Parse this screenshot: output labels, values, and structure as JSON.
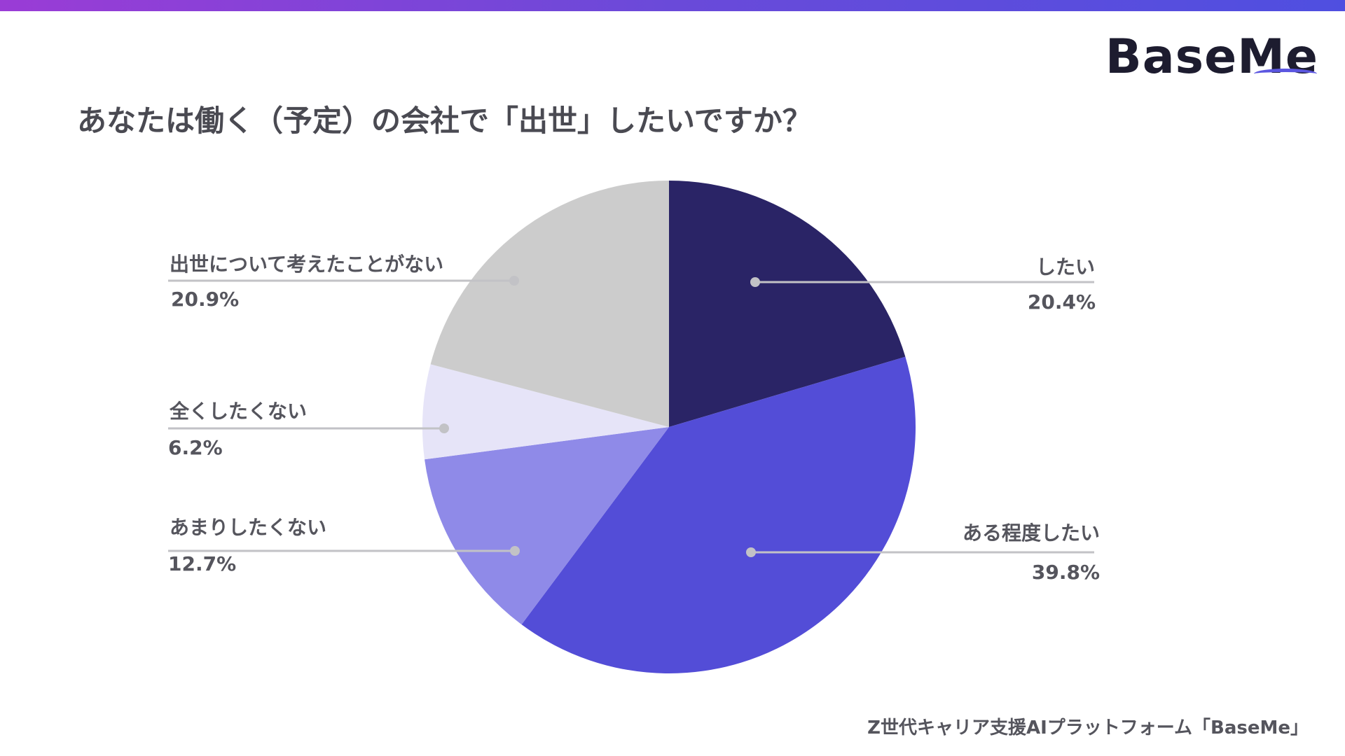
{
  "brand": {
    "logo_text": "BaseMe",
    "accent_color": "#5b56e0"
  },
  "title": "あなたは働く（予定）の会社で「出世」したいですか？",
  "footer": "Z世代キャリア支援AIプラットフォーム「BaseMe」",
  "chart_data": {
    "type": "pie",
    "start_angle_deg": 0,
    "direction": "clockwise",
    "slices": [
      {
        "label": "したい",
        "value": 20.4,
        "value_label": "20.4%",
        "color": "#2a2466"
      },
      {
        "label": "ある程度したい",
        "value": 39.8,
        "value_label": "39.8%",
        "color": "#534dd7"
      },
      {
        "label": "あまりしたくない",
        "value": 12.7,
        "value_label": "12.7%",
        "color": "#8f8ae8"
      },
      {
        "label": "全くしたくない",
        "value": 6.2,
        "value_label": "6.2%",
        "color": "#e6e4f8"
      },
      {
        "label": "出世について考えたことがない",
        "value": 20.9,
        "value_label": "20.9%",
        "color": "#cccccc"
      }
    ]
  }
}
